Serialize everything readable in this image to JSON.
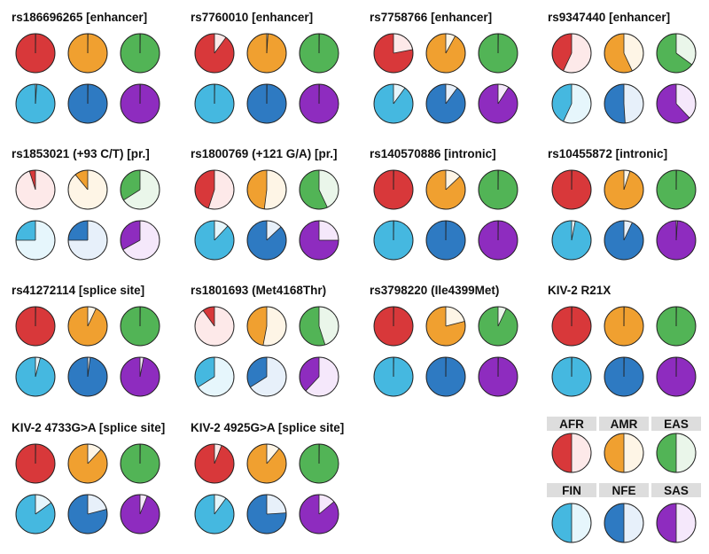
{
  "chart_data": {
    "type": "pie",
    "note_units": "each pie value = fraction of the pie drawn in the full (dark) population colour",
    "populations": [
      {
        "code": "AFR",
        "color": "#d8383a",
        "light": "#fde9e9"
      },
      {
        "code": "AMR",
        "color": "#f0a030",
        "light": "#fef5e6"
      },
      {
        "code": "EAS",
        "color": "#52b456",
        "light": "#eaf6ea"
      },
      {
        "code": "FIN",
        "color": "#45b8e0",
        "light": "#e6f6fc"
      },
      {
        "code": "NFE",
        "color": "#2e7ac2",
        "light": "#e7f0fa"
      },
      {
        "code": "SAS",
        "color": "#8e2cbf",
        "light": "#f5e8fb"
      }
    ],
    "variants": [
      {
        "title": "rs186696265 [enhancer]",
        "values": [
          0.998,
          0.998,
          0.998,
          0.99,
          0.998,
          0.998
        ]
      },
      {
        "title": "rs7760010 [enhancer]",
        "values": [
          0.9,
          0.99,
          0.998,
          0.998,
          0.998,
          0.998
        ]
      },
      {
        "title": "rs7758766 [enhancer]",
        "values": [
          0.78,
          0.92,
          0.998,
          0.9,
          0.9,
          0.91
        ]
      },
      {
        "title": "rs9347440 [enhancer]",
        "values": [
          0.43,
          0.57,
          0.65,
          0.43,
          0.51,
          0.62
        ]
      },
      {
        "title": "rs1853021 (+93 C/T) [pr.]",
        "values": [
          0.05,
          0.11,
          0.34,
          0.25,
          0.25,
          0.33
        ]
      },
      {
        "title": "rs1800769 (+121 G/A) [pr.]",
        "values": [
          0.45,
          0.48,
          0.57,
          0.88,
          0.87,
          0.75
        ]
      },
      {
        "title": "rs140570886 [intronic]",
        "values": [
          0.998,
          0.87,
          0.998,
          0.998,
          0.998,
          0.998
        ]
      },
      {
        "title": "rs10455872 [intronic]",
        "values": [
          0.998,
          0.95,
          0.998,
          0.97,
          0.93,
          0.99
        ]
      },
      {
        "title": "rs41272114 [splice site]",
        "values": [
          0.998,
          0.93,
          0.998,
          0.96,
          0.98,
          0.97
        ]
      },
      {
        "title": "rs1801693 (Met4168Thr)",
        "values": [
          0.1,
          0.47,
          0.55,
          0.34,
          0.34,
          0.38
        ]
      },
      {
        "title": "rs3798220 (Ile4399Met)",
        "values": [
          0.998,
          0.79,
          0.93,
          0.998,
          0.998,
          0.998
        ]
      },
      {
        "title": "KIV-2 R21X",
        "values": [
          0.998,
          0.998,
          0.998,
          0.998,
          0.998,
          0.998
        ]
      },
      {
        "title": "KIV-2 4733G>A [splice site]",
        "values": [
          0.998,
          0.88,
          0.998,
          0.85,
          0.79,
          0.94
        ]
      },
      {
        "title": "KIV-2 4925G>A [splice site]",
        "values": [
          0.94,
          0.89,
          0.998,
          0.9,
          0.76,
          0.86
        ]
      }
    ],
    "legend": {
      "position": "bottom-right",
      "items": [
        {
          "code": "AFR",
          "value": 0.5
        },
        {
          "code": "AMR",
          "value": 0.5
        },
        {
          "code": "EAS",
          "value": 0.5
        },
        {
          "code": "FIN",
          "value": 0.5
        },
        {
          "code": "NFE",
          "value": 0.5
        },
        {
          "code": "SAS",
          "value": 0.5
        }
      ]
    }
  }
}
